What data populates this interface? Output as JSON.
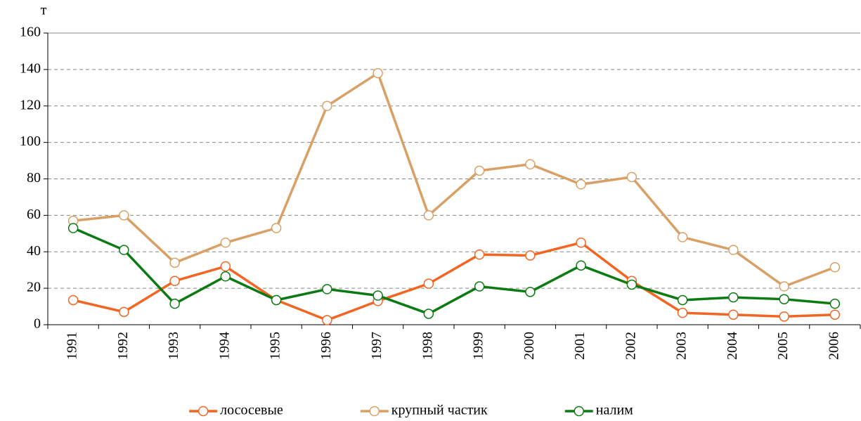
{
  "chart_data": {
    "type": "line",
    "y_label": "т",
    "categories": [
      "1991",
      "1992",
      "1993",
      "1994",
      "1995",
      "1996",
      "1997",
      "1998",
      "1999",
      "2000",
      "2001",
      "2002",
      "2003",
      "2004",
      "2005",
      "2006"
    ],
    "series": [
      {
        "name": "лососевые",
        "color": "#f26522",
        "values": [
          13.5,
          7,
          24,
          32,
          13.5,
          2.5,
          13,
          22.5,
          38.5,
          38,
          45,
          24,
          6.5,
          5.5,
          4.5,
          5.5
        ]
      },
      {
        "name": "крупный частик",
        "color": "#d9a066",
        "values": [
          57,
          60,
          34,
          45,
          53,
          120,
          138,
          60,
          84.5,
          88,
          77,
          81,
          48,
          41,
          21,
          31.5
        ]
      },
      {
        "name": "налим",
        "color": "#0b7a12",
        "values": [
          53,
          41,
          11.5,
          26.5,
          13.5,
          19.5,
          16,
          6,
          21,
          18,
          32.5,
          22,
          13.5,
          15,
          14,
          11.5
        ]
      }
    ],
    "ylim": [
      0,
      160
    ],
    "yticks": [
      0,
      20,
      40,
      60,
      80,
      100,
      120,
      140,
      160
    ],
    "grid": true,
    "legend": "bottom"
  }
}
